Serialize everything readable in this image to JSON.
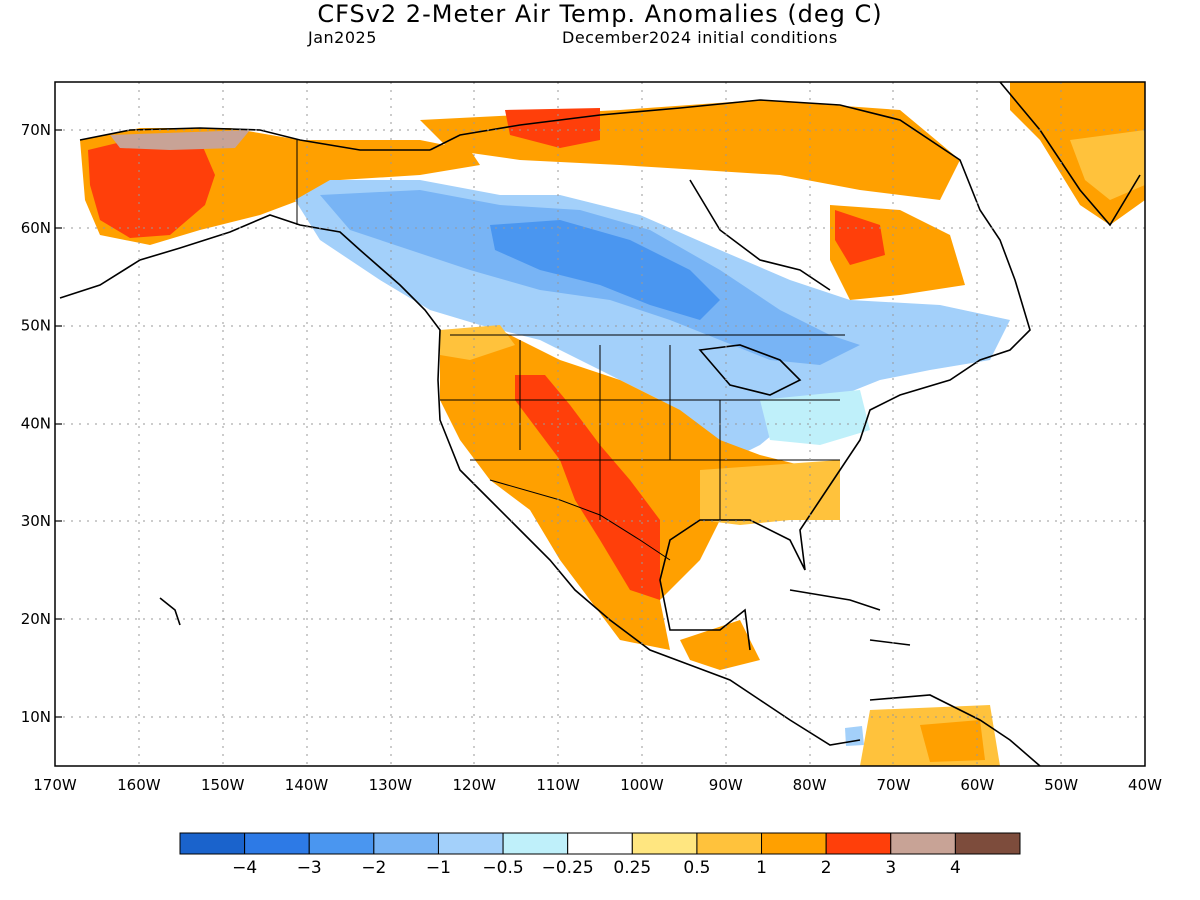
{
  "title": "CFSv2 2-Meter Air Temp. Anomalies (deg C)",
  "subtitle_left": "Jan2025",
  "subtitle_right": "December2024 initial conditions",
  "axes": {
    "lat_labels": [
      "70N",
      "60N",
      "50N",
      "40N",
      "30N",
      "20N",
      "10N"
    ],
    "lon_labels": [
      "170W",
      "160W",
      "150W",
      "140W",
      "130W",
      "120W",
      "110W",
      "100W",
      "90W",
      "80W",
      "70W",
      "60W",
      "50W",
      "40W"
    ]
  },
  "colorbar": {
    "colors": [
      "#1a63cc",
      "#2d7ae6",
      "#4a96f0",
      "#78b4f5",
      "#a3d0fa",
      "#bff0fa",
      "#ffffff",
      "#ffe680",
      "#ffc23c",
      "#ffa000",
      "#ff3f0a",
      "#c8a396",
      "#7d4c3c"
    ],
    "labels": [
      "−4",
      "−3",
      "−2",
      "−1",
      "−0.5",
      "−0.25",
      "0.25",
      "0.5",
      "1",
      "2",
      "3",
      "4"
    ]
  }
}
